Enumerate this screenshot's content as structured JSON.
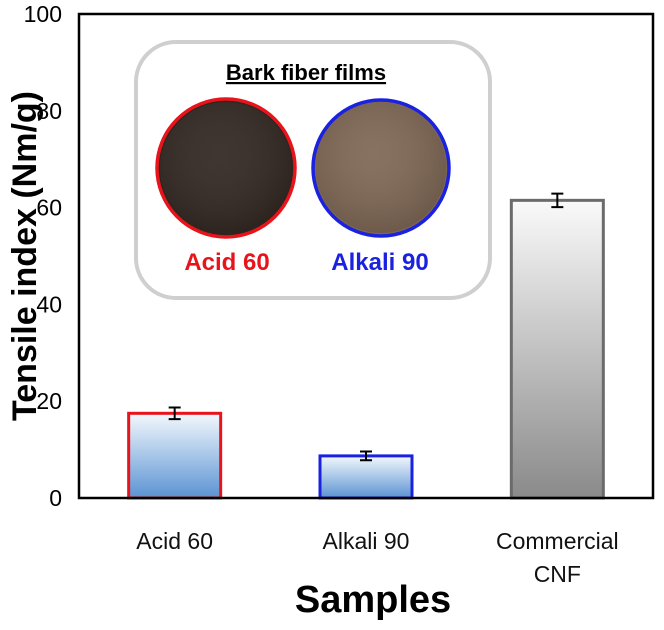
{
  "chart_data": {
    "type": "bar",
    "categories": [
      [
        "Acid 60"
      ],
      [
        "Alkali 90"
      ],
      [
        "Commercial",
        "CNF"
      ]
    ],
    "values": [
      17.5,
      8.7,
      61.5
    ],
    "errors": [
      1.2,
      0.9,
      1.4
    ],
    "bar_edge_colors": [
      "#e8141b",
      "#1a22e0",
      "#6b6b6b"
    ],
    "bar_fill_styles": [
      "blue-gradient",
      "blue-gradient",
      "gray-gradient"
    ],
    "ylabel": "Tensile index (Nm/g)",
    "xlabel": "Samples",
    "ylim": [
      0,
      100
    ],
    "yticks": [
      0,
      20,
      40,
      60,
      80,
      100
    ],
    "grid": false,
    "inset": {
      "title": "Bark fiber films",
      "samples": [
        {
          "label": "Acid 60",
          "label_color": "#e8141b",
          "disc_color": "#2f241e",
          "ring_color": "#e8141b"
        },
        {
          "label": "Alkali 90",
          "label_color": "#1a22e0",
          "disc_color": "#7d6552",
          "ring_color": "#1a22e0"
        }
      ]
    }
  }
}
